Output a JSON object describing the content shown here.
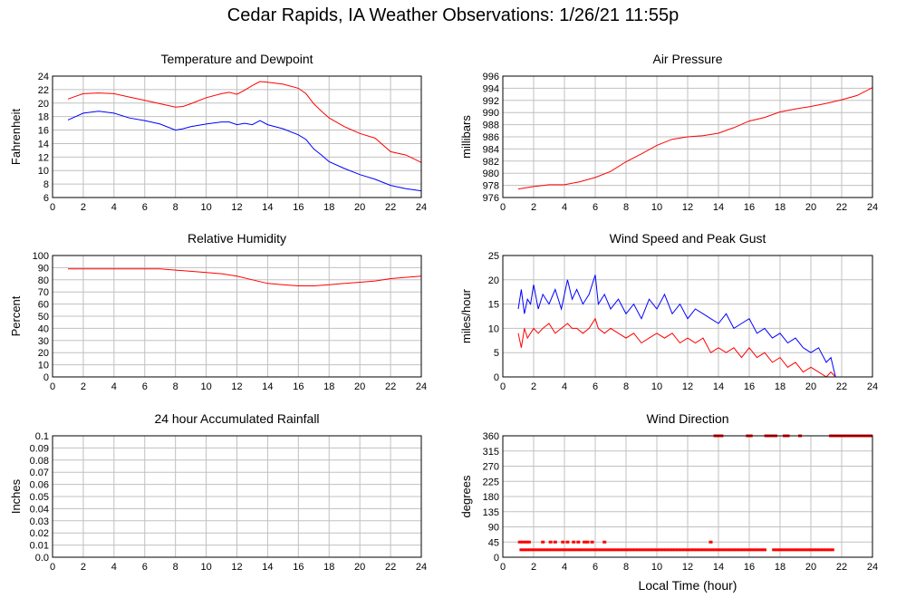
{
  "page": {
    "title": "Cedar Rapids, IA Weather Observations: 1/26/21 11:55p"
  },
  "colors": {
    "series_red": "#ff0000",
    "series_blue": "#0000ff",
    "grid": "#c0c0c0",
    "frame": "#000000"
  },
  "chart_data": [
    {
      "type": "line",
      "title": "Temperature and Dewpoint",
      "xlabel": "",
      "ylabel": "Fahrenheit",
      "xlim": [
        0,
        24
      ],
      "ylim": [
        6,
        24
      ],
      "x_ticks": [
        0,
        2,
        4,
        6,
        8,
        10,
        12,
        14,
        16,
        18,
        20,
        22,
        24
      ],
      "y_ticks": [
        6,
        8,
        10,
        12,
        14,
        16,
        18,
        20,
        22,
        24
      ],
      "grid": true,
      "series": [
        {
          "color": "#ff0000",
          "x": [
            1,
            1.5,
            2,
            3,
            4,
            5,
            6,
            7,
            8,
            8.5,
            9,
            10,
            11,
            11.5,
            12,
            12.5,
            13,
            13.5,
            14,
            15,
            16,
            16.5,
            17,
            17.5,
            18,
            19,
            20,
            21,
            22,
            23,
            24
          ],
          "y": [
            20.6,
            21.0,
            21.4,
            21.5,
            21.4,
            20.9,
            20.4,
            19.9,
            19.4,
            19.5,
            19.9,
            20.8,
            21.4,
            21.6,
            21.3,
            21.9,
            22.6,
            23.2,
            23.1,
            22.8,
            22.2,
            21.4,
            19.9,
            18.8,
            17.8,
            16.5,
            15.5,
            14.8,
            12.8,
            12.3,
            11.2
          ]
        },
        {
          "color": "#0000ff",
          "x": [
            1,
            1.5,
            2,
            3,
            4,
            5,
            6,
            7,
            8,
            8.5,
            9,
            10,
            11,
            11.5,
            12,
            12.5,
            13,
            13.5,
            14,
            15,
            16,
            16.5,
            17,
            17.5,
            18,
            19,
            20,
            21,
            22,
            23,
            24
          ],
          "y": [
            17.5,
            18.0,
            18.5,
            18.8,
            18.5,
            17.8,
            17.4,
            16.9,
            16.0,
            16.2,
            16.5,
            16.9,
            17.2,
            17.2,
            16.8,
            17.0,
            16.8,
            17.4,
            16.8,
            16.2,
            15.3,
            14.6,
            13.2,
            12.3,
            11.3,
            10.3,
            9.4,
            8.7,
            7.8,
            7.3,
            7.0
          ]
        }
      ]
    },
    {
      "type": "line",
      "title": "Air Pressure",
      "xlabel": "",
      "ylabel": "millibars",
      "xlim": [
        0,
        24
      ],
      "ylim": [
        976,
        996
      ],
      "x_ticks": [
        0,
        2,
        4,
        6,
        8,
        10,
        12,
        14,
        16,
        18,
        20,
        22,
        24
      ],
      "y_ticks": [
        976,
        978,
        980,
        982,
        984,
        986,
        988,
        990,
        992,
        994,
        996
      ],
      "grid": true,
      "series": [
        {
          "color": "#ff0000",
          "x": [
            1,
            2,
            3,
            4,
            5,
            6,
            7,
            8,
            9,
            10,
            11,
            12,
            13,
            14,
            15,
            16,
            17,
            18,
            19,
            20,
            21,
            22,
            23,
            24
          ],
          "y": [
            977.4,
            977.8,
            978.1,
            978.1,
            978.6,
            979.3,
            980.3,
            981.9,
            983.2,
            984.6,
            985.6,
            986.0,
            986.2,
            986.6,
            987.5,
            988.6,
            989.2,
            990.1,
            990.6,
            991.0,
            991.5,
            992.1,
            992.8,
            994.1
          ]
        }
      ]
    },
    {
      "type": "line",
      "title": "Relative Humidity",
      "xlabel": "",
      "ylabel": "Percent",
      "xlim": [
        0,
        24
      ],
      "ylim": [
        0,
        100
      ],
      "x_ticks": [
        0,
        2,
        4,
        6,
        8,
        10,
        12,
        14,
        16,
        18,
        20,
        22,
        24
      ],
      "y_ticks": [
        0,
        10,
        20,
        30,
        40,
        50,
        60,
        70,
        80,
        90,
        100
      ],
      "grid": true,
      "series": [
        {
          "color": "#ff0000",
          "x": [
            1,
            2,
            3,
            4,
            5,
            6,
            7,
            8,
            9,
            10,
            11,
            12,
            13,
            14,
            15,
            16,
            17,
            18,
            19,
            20,
            21,
            22,
            23,
            24
          ],
          "y": [
            89,
            89,
            89,
            89,
            89,
            89,
            89,
            88,
            87,
            86,
            85,
            83,
            80,
            77,
            76,
            75,
            75,
            76,
            77,
            78,
            79,
            81,
            82,
            83
          ]
        }
      ]
    },
    {
      "type": "line",
      "title": "Wind Speed and Peak Gust",
      "xlabel": "",
      "ylabel": "miles/hour",
      "xlim": [
        0,
        24
      ],
      "ylim": [
        0,
        25
      ],
      "x_ticks": [
        0,
        2,
        4,
        6,
        8,
        10,
        12,
        14,
        16,
        18,
        20,
        22,
        24
      ],
      "y_ticks": [
        0,
        5,
        10,
        15,
        20,
        25
      ],
      "grid": true,
      "series": [
        {
          "color": "#0000ff",
          "x": [
            1.0,
            1.2,
            1.4,
            1.6,
            1.8,
            2.0,
            2.3,
            2.6,
            3.0,
            3.4,
            3.8,
            4.2,
            4.5,
            4.8,
            5.2,
            5.6,
            6.0,
            6.2,
            6.6,
            7.0,
            7.5,
            8.0,
            8.5,
            9.0,
            9.5,
            10.0,
            10.5,
            11.0,
            11.5,
            12.0,
            12.5,
            13.0,
            13.5,
            14.0,
            14.5,
            15.0,
            15.5,
            16.0,
            16.5,
            17.0,
            17.5,
            18.0,
            18.5,
            19.0,
            19.5,
            20.0,
            20.5,
            21.0,
            21.3,
            21.6,
            22.0,
            24.0
          ],
          "y": [
            14,
            18,
            13,
            16,
            15,
            19,
            14,
            17,
            15,
            18,
            14,
            20,
            16,
            18,
            15,
            17,
            21,
            15,
            17,
            14,
            16,
            13,
            15,
            12,
            16,
            14,
            17,
            13,
            15,
            12,
            14,
            13,
            12,
            11,
            13,
            10,
            11,
            12,
            9,
            10,
            8,
            9,
            7,
            8,
            6,
            5,
            6,
            3,
            4,
            0,
            0,
            0
          ]
        },
        {
          "color": "#ff0000",
          "x": [
            1.0,
            1.2,
            1.4,
            1.6,
            1.8,
            2.0,
            2.3,
            2.6,
            3.0,
            3.4,
            3.8,
            4.2,
            4.5,
            4.8,
            5.2,
            5.6,
            6.0,
            6.2,
            6.6,
            7.0,
            7.5,
            8.0,
            8.5,
            9.0,
            9.5,
            10.0,
            10.5,
            11.0,
            11.5,
            12.0,
            12.5,
            13.0,
            13.5,
            14.0,
            14.5,
            15.0,
            15.5,
            16.0,
            16.5,
            17.0,
            17.5,
            18.0,
            18.5,
            19.0,
            19.5,
            20.0,
            20.5,
            21.0,
            21.3,
            21.6,
            22.0,
            24.0
          ],
          "y": [
            9,
            6,
            10,
            8,
            9,
            10,
            9,
            10,
            11,
            9,
            10,
            11,
            10,
            10,
            9,
            10,
            12,
            10,
            9,
            10,
            9,
            8,
            9,
            7,
            8,
            9,
            8,
            9,
            7,
            8,
            7,
            8,
            5,
            6,
            5,
            6,
            4,
            6,
            4,
            5,
            3,
            4,
            2,
            3,
            1,
            2,
            1,
            0,
            1,
            0,
            0,
            0
          ]
        }
      ]
    },
    {
      "type": "line",
      "title": "24 hour Accumulated Rainfall",
      "xlabel": "",
      "ylabel": "Inches",
      "xlim": [
        0,
        24
      ],
      "ylim": [
        0,
        0.1
      ],
      "x_ticks": [
        0,
        2,
        4,
        6,
        8,
        10,
        12,
        14,
        16,
        18,
        20,
        22,
        24
      ],
      "y_ticks": [
        0.0,
        0.01,
        0.02,
        0.03,
        0.04,
        0.05,
        0.06,
        0.07,
        0.08,
        0.09,
        0.1
      ],
      "y_tick_labels": [
        "0.0",
        "0.01",
        "0.02",
        "0.03",
        "0.04",
        "0.05",
        "0.06",
        "0.07",
        "0.08",
        "0.09",
        "0.1"
      ],
      "grid": true,
      "series": [
        {
          "color": "#ff0000",
          "x": [
            1,
            24
          ],
          "y": [
            0,
            0
          ]
        }
      ]
    },
    {
      "type": "scatter",
      "title": "Wind Direction",
      "xlabel": "Local Time (hour)",
      "ylabel": "degrees",
      "xlim": [
        0,
        24
      ],
      "ylim": [
        0,
        360
      ],
      "x_ticks": [
        0,
        2,
        4,
        6,
        8,
        10,
        12,
        14,
        16,
        18,
        20,
        22,
        24
      ],
      "y_ticks": [
        0,
        45,
        90,
        135,
        180,
        225,
        270,
        315,
        360
      ],
      "grid": true,
      "series": [
        {
          "color": "#ff0000",
          "x": [
            1.1,
            1.3,
            1.5,
            1.7,
            2.6,
            3.1,
            3.4,
            3.9,
            4.2,
            4.6,
            4.9,
            5.3,
            5.5,
            5.8,
            6.6,
            13.5,
            1.2,
            1.4,
            1.6,
            1.8,
            2.0,
            2.2,
            2.4,
            2.6,
            2.8,
            3.0,
            3.2,
            3.4,
            3.6,
            3.8,
            4.0,
            4.2,
            4.4,
            4.6,
            4.8,
            5.0,
            5.2,
            5.4,
            5.6,
            5.8,
            6.0,
            6.2,
            6.4,
            6.6,
            6.8,
            7.0,
            7.2,
            7.4,
            7.6,
            7.8,
            8.0,
            8.2,
            8.4,
            8.6,
            8.8,
            9.0,
            9.2,
            9.4,
            9.6,
            9.8,
            10.0,
            10.2,
            10.4,
            10.6,
            10.8,
            11.0,
            11.2,
            11.4,
            11.6,
            11.8,
            12.0,
            12.2,
            12.4,
            12.6,
            12.8,
            13.0,
            13.2,
            13.4,
            13.6,
            13.8,
            14.0,
            14.2,
            14.4,
            14.6,
            14.8,
            15.0,
            15.2,
            15.4,
            15.6,
            15.8,
            16.0,
            16.2,
            16.4,
            16.6,
            16.8,
            17.0,
            17.6,
            17.8,
            18.0,
            18.2,
            18.4,
            18.6,
            18.8,
            19.0,
            19.2,
            19.4,
            19.6,
            19.8,
            20.0,
            20.2,
            20.4,
            20.6,
            20.8,
            21.0,
            21.2,
            21.4,
            13.8,
            14.0,
            14.2,
            15.9,
            16.1,
            17.1,
            17.3,
            17.5,
            17.7,
            18.3,
            18.5,
            19.3,
            21.3,
            21.5,
            21.7,
            21.9,
            22.1,
            22.3,
            22.5,
            22.7,
            22.9,
            23.1,
            23.3,
            23.5,
            23.7,
            23.9
          ],
          "y": [
            45,
            45,
            45,
            45,
            45,
            45,
            45,
            45,
            45,
            45,
            45,
            45,
            45,
            45,
            45,
            45,
            22,
            22,
            22,
            22,
            22,
            22,
            22,
            22,
            22,
            22,
            22,
            22,
            22,
            22,
            22,
            22,
            22,
            22,
            22,
            22,
            22,
            22,
            22,
            22,
            22,
            22,
            22,
            22,
            22,
            22,
            22,
            22,
            22,
            22,
            22,
            22,
            22,
            22,
            22,
            22,
            22,
            22,
            22,
            22,
            22,
            22,
            22,
            22,
            22,
            22,
            22,
            22,
            22,
            22,
            22,
            22,
            22,
            22,
            22,
            22,
            22,
            22,
            22,
            22,
            22,
            22,
            22,
            22,
            22,
            22,
            22,
            22,
            22,
            22,
            22,
            22,
            22,
            22,
            22,
            22,
            22,
            22,
            22,
            22,
            22,
            22,
            22,
            22,
            22,
            22,
            22,
            22,
            22,
            22,
            22,
            22,
            22,
            22,
            22,
            22,
            360,
            360,
            360,
            360,
            360,
            360,
            360,
            360,
            360,
            360,
            360,
            360,
            360,
            360,
            360,
            360,
            360,
            360,
            360,
            360,
            360,
            360,
            360,
            360,
            360,
            360
          ]
        }
      ]
    }
  ]
}
